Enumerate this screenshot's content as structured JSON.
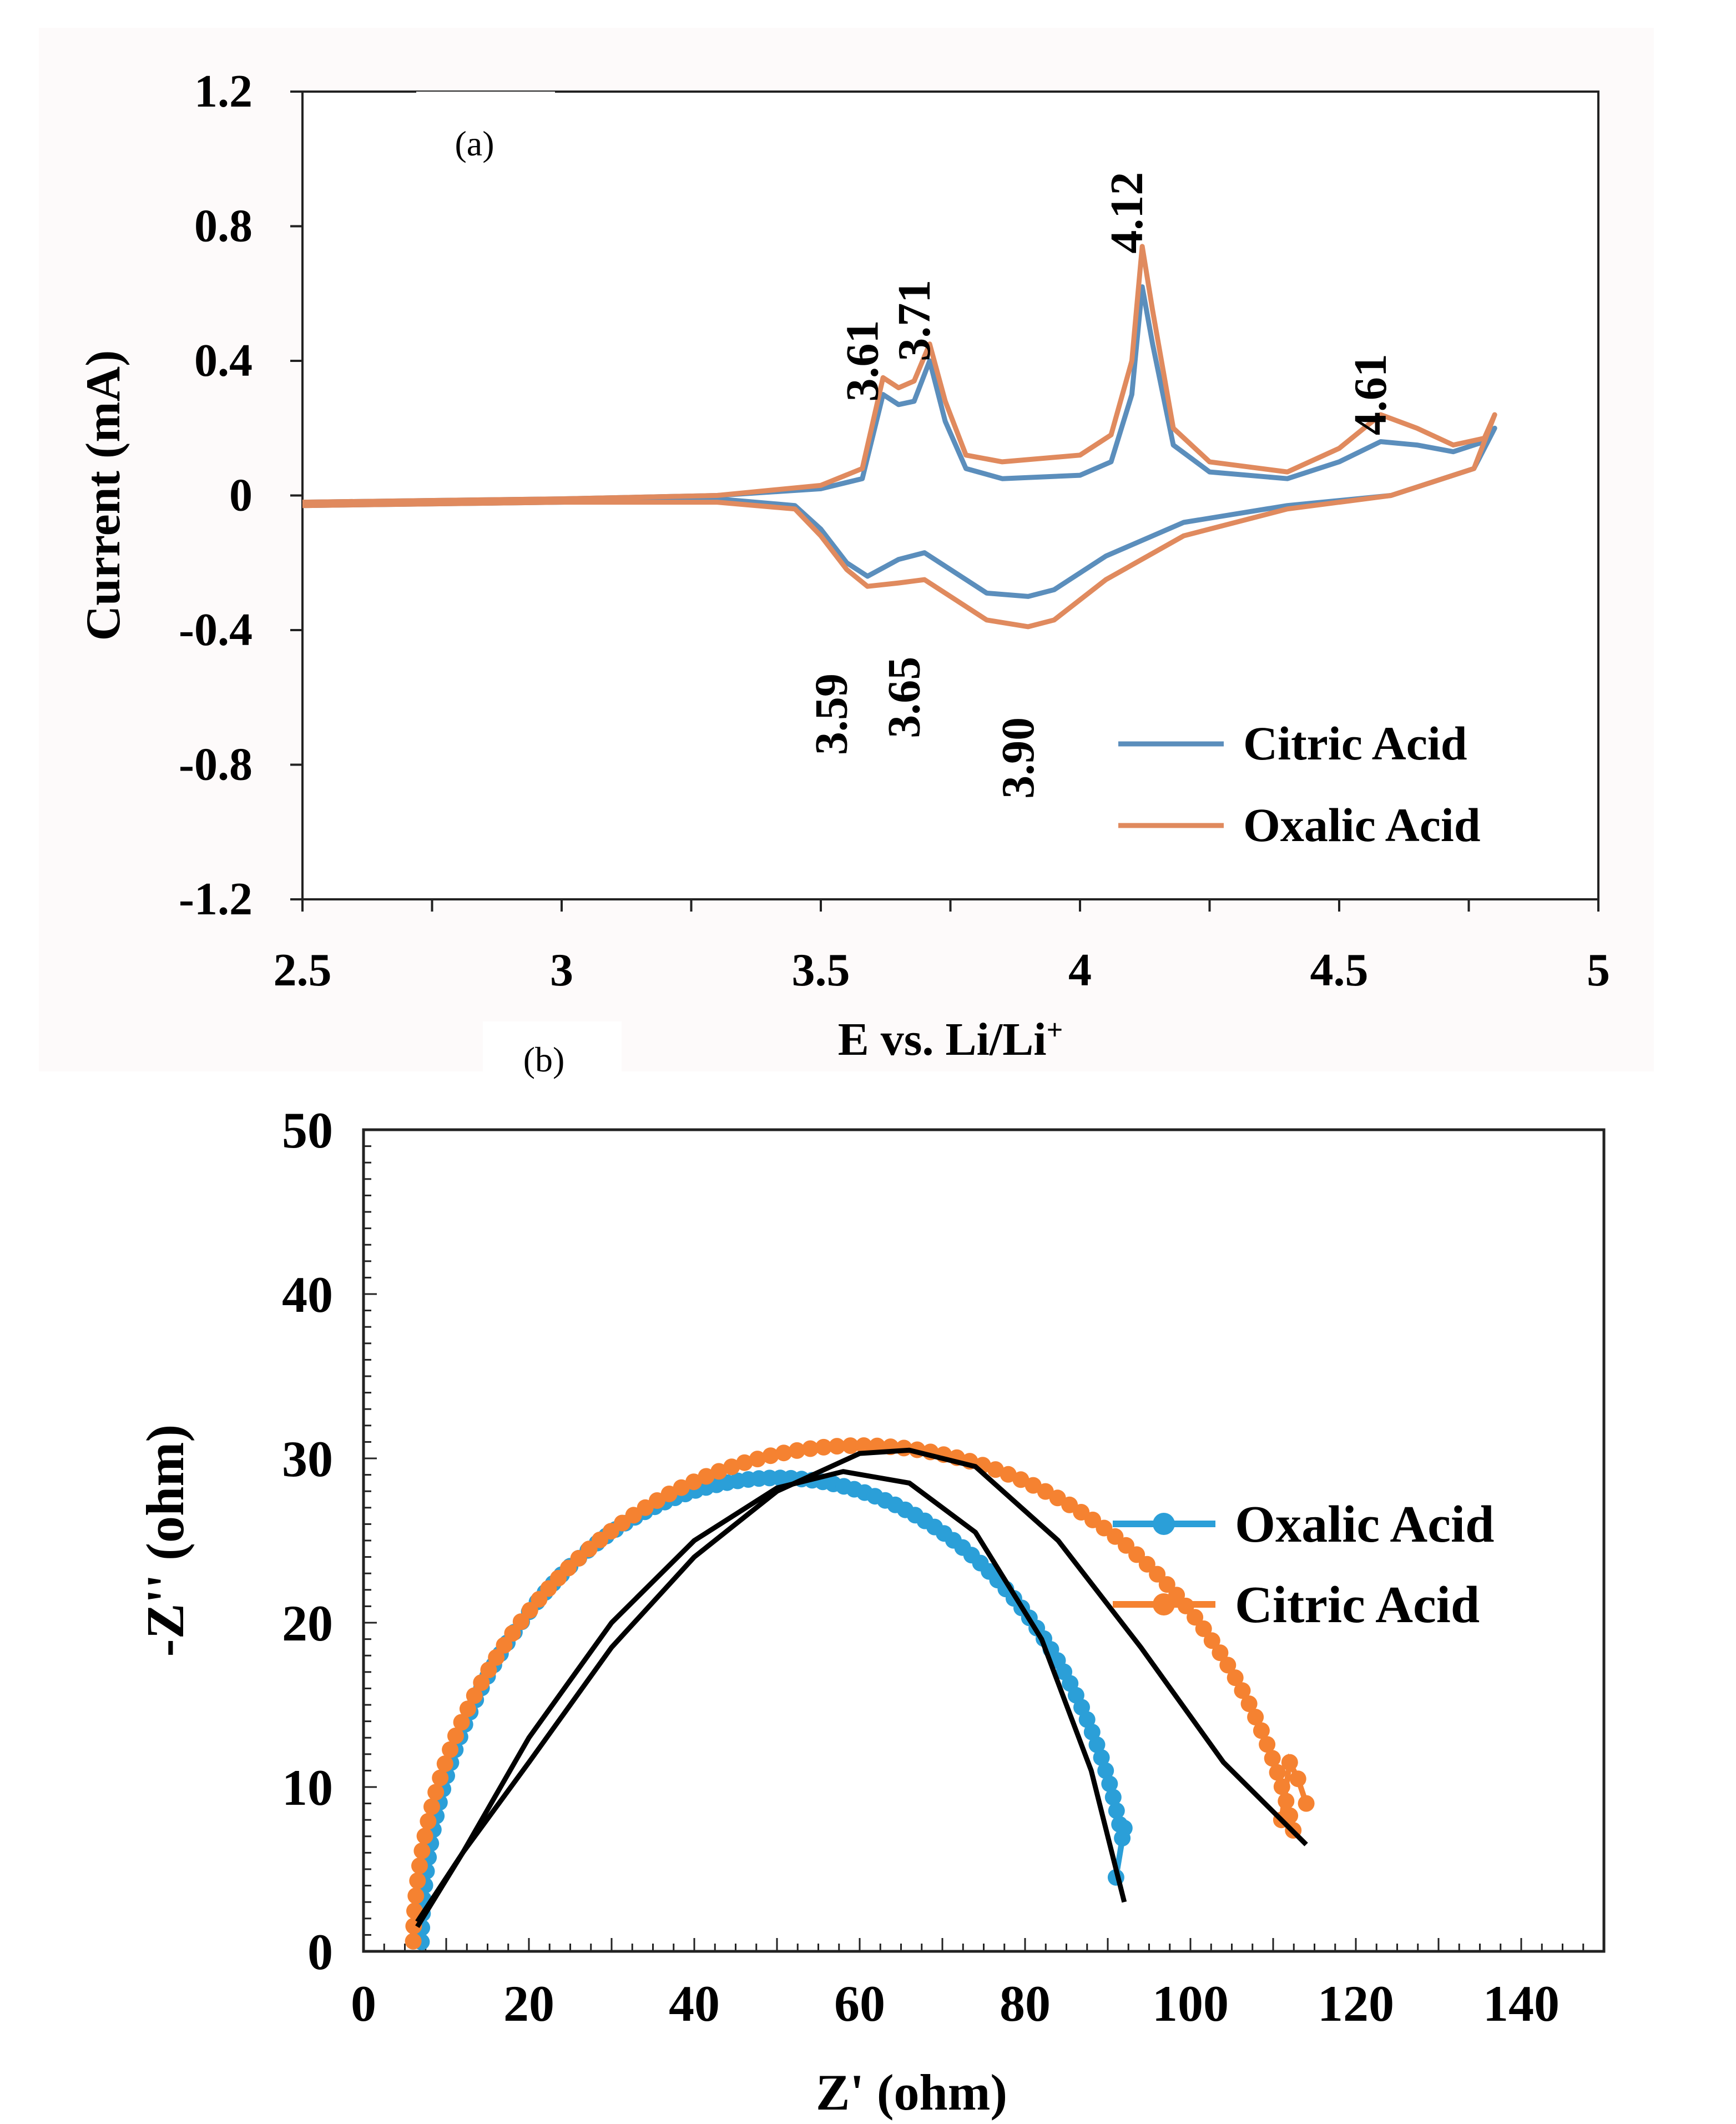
{
  "chart_data": [
    {
      "panel": "(a)",
      "type": "line",
      "xlabel": "E vs. Li/Li",
      "xlabel_sup": "+",
      "ylabel": "Current (mA)",
      "xlim": [
        2.5,
        5
      ],
      "ylim": [
        -1.2,
        1.2
      ],
      "xticks": [
        "2.5",
        "3",
        "3.5",
        "4",
        "4.5",
        "5"
      ],
      "xtick_values": [
        2.5,
        3,
        3.5,
        4,
        4.5,
        5
      ],
      "yticks": [
        "1.2",
        "0.8",
        "0.4",
        "0",
        "-0.4",
        "-0.8",
        "-1.2"
      ],
      "ytick_values": [
        1.2,
        0.8,
        0.4,
        0,
        -0.4,
        -0.8,
        -1.2
      ],
      "legend": [
        "Citric Acid",
        "Oxalic Acid"
      ],
      "series": [
        {
          "name": "Citric Acid",
          "color": "#5b8ebc",
          "anodic": [
            [
              2.5,
              -0.02
            ],
            [
              3.0,
              -0.01
            ],
            [
              3.3,
              0.0
            ],
            [
              3.5,
              0.02
            ],
            [
              3.58,
              0.05
            ],
            [
              3.62,
              0.3
            ],
            [
              3.65,
              0.27
            ],
            [
              3.68,
              0.28
            ],
            [
              3.71,
              0.4
            ],
            [
              3.74,
              0.22
            ],
            [
              3.78,
              0.08
            ],
            [
              3.85,
              0.05
            ],
            [
              4.0,
              0.06
            ],
            [
              4.06,
              0.1
            ],
            [
              4.1,
              0.3
            ],
            [
              4.12,
              0.62
            ],
            [
              4.14,
              0.45
            ],
            [
              4.18,
              0.15
            ],
            [
              4.25,
              0.07
            ],
            [
              4.4,
              0.05
            ],
            [
              4.5,
              0.1
            ],
            [
              4.58,
              0.16
            ],
            [
              4.65,
              0.15
            ],
            [
              4.72,
              0.13
            ],
            [
              4.78,
              0.16
            ],
            [
              4.8,
              0.2
            ]
          ],
          "cathodic": [
            [
              4.8,
              0.2
            ],
            [
              4.76,
              0.08
            ],
            [
              4.6,
              0.0
            ],
            [
              4.4,
              -0.03
            ],
            [
              4.2,
              -0.08
            ],
            [
              4.05,
              -0.18
            ],
            [
              3.95,
              -0.28
            ],
            [
              3.9,
              -0.3
            ],
            [
              3.82,
              -0.29
            ],
            [
              3.75,
              -0.22
            ],
            [
              3.7,
              -0.17
            ],
            [
              3.65,
              -0.19
            ],
            [
              3.59,
              -0.24
            ],
            [
              3.55,
              -0.2
            ],
            [
              3.5,
              -0.1
            ],
            [
              3.45,
              -0.03
            ],
            [
              3.3,
              -0.01
            ],
            [
              3.0,
              -0.02
            ],
            [
              2.5,
              -0.03
            ]
          ]
        },
        {
          "name": "Oxalic Acid",
          "color": "#e08a5e",
          "anodic": [
            [
              2.5,
              -0.02
            ],
            [
              3.0,
              -0.01
            ],
            [
              3.3,
              0.0
            ],
            [
              3.5,
              0.03
            ],
            [
              3.58,
              0.08
            ],
            [
              3.62,
              0.35
            ],
            [
              3.65,
              0.32
            ],
            [
              3.68,
              0.34
            ],
            [
              3.71,
              0.45
            ],
            [
              3.74,
              0.28
            ],
            [
              3.78,
              0.12
            ],
            [
              3.85,
              0.1
            ],
            [
              4.0,
              0.12
            ],
            [
              4.06,
              0.18
            ],
            [
              4.1,
              0.4
            ],
            [
              4.12,
              0.74
            ],
            [
              4.14,
              0.55
            ],
            [
              4.18,
              0.2
            ],
            [
              4.25,
              0.1
            ],
            [
              4.4,
              0.07
            ],
            [
              4.5,
              0.14
            ],
            [
              4.58,
              0.24
            ],
            [
              4.65,
              0.2
            ],
            [
              4.72,
              0.15
            ],
            [
              4.78,
              0.17
            ],
            [
              4.8,
              0.24
            ]
          ],
          "cathodic": [
            [
              4.8,
              0.24
            ],
            [
              4.76,
              0.08
            ],
            [
              4.6,
              0.0
            ],
            [
              4.4,
              -0.04
            ],
            [
              4.2,
              -0.12
            ],
            [
              4.05,
              -0.25
            ],
            [
              3.95,
              -0.37
            ],
            [
              3.9,
              -0.39
            ],
            [
              3.82,
              -0.37
            ],
            [
              3.75,
              -0.3
            ],
            [
              3.7,
              -0.25
            ],
            [
              3.65,
              -0.26
            ],
            [
              3.59,
              -0.27
            ],
            [
              3.55,
              -0.22
            ],
            [
              3.5,
              -0.12
            ],
            [
              3.45,
              -0.04
            ],
            [
              3.3,
              -0.02
            ],
            [
              3.0,
              -0.02
            ],
            [
              2.5,
              -0.03
            ]
          ]
        }
      ],
      "annotations": [
        {
          "text": "3.61",
          "x": 3.61,
          "y": 0.4,
          "rotate": true
        },
        {
          "text": "3.71",
          "x": 3.71,
          "y": 0.52,
          "rotate": true
        },
        {
          "text": "4.12",
          "x": 4.12,
          "y": 0.84,
          "rotate": true
        },
        {
          "text": "4.61",
          "x": 4.59,
          "y": 0.3,
          "rotate": true
        },
        {
          "text": "3.59",
          "x": 3.55,
          "y": -0.65,
          "rotate": true
        },
        {
          "text": "3.65",
          "x": 3.69,
          "y": -0.6,
          "rotate": true
        },
        {
          "text": "3.90",
          "x": 3.91,
          "y": -0.78,
          "rotate": true
        }
      ]
    },
    {
      "panel": "(b)",
      "type": "scatter",
      "xlabel": "Z' (ohm)",
      "ylabel": "-Z'' (ohm)",
      "xlim": [
        0,
        150
      ],
      "ylim": [
        0,
        50
      ],
      "xticks": [
        "0",
        "20",
        "40",
        "60",
        "80",
        "100",
        "120",
        "140"
      ],
      "xtick_values": [
        0,
        20,
        40,
        60,
        80,
        100,
        120,
        140
      ],
      "yticks": [
        "50",
        "40",
        "30",
        "20",
        "10",
        "0"
      ],
      "ytick_values": [
        50,
        40,
        30,
        20,
        10,
        0
      ],
      "legend": [
        "Oxalic Acid",
        "Citric Acid"
      ],
      "series": [
        {
          "name": "Oxalic Acid",
          "color": "#2b9fd8",
          "center": 50,
          "radius": 43,
          "rcut": 10,
          "end": [
            [
              91,
              4.5
            ],
            [
              92,
              7.5
            ]
          ]
        },
        {
          "name": "Citric Acid",
          "color": "#f58231",
          "center": 60,
          "radius": 54,
          "rcut": 12,
          "end": [
            [
              111,
              8
            ],
            [
              112,
              11.5
            ],
            [
              113,
              10.5
            ],
            [
              114,
              9
            ]
          ]
        }
      ],
      "fits": [
        {
          "name": "Oxalic Acid fit",
          "color": "#000000",
          "points": [
            [
              6.5,
              1.5
            ],
            [
              12,
              6
            ],
            [
              20,
              13
            ],
            [
              30,
              20
            ],
            [
              40,
              25
            ],
            [
              50,
              28.2
            ],
            [
              58,
              29.2
            ],
            [
              66,
              28.5
            ],
            [
              74,
              25.5
            ],
            [
              82,
              19
            ],
            [
              88,
              11
            ],
            [
              92,
              3
            ]
          ]
        },
        {
          "name": "Citric Acid fit",
          "color": "#000000",
          "points": [
            [
              6.5,
              1.8
            ],
            [
              12,
              6
            ],
            [
              20,
              11.5
            ],
            [
              30,
              18.5
            ],
            [
              40,
              24
            ],
            [
              50,
              28
            ],
            [
              60,
              30.3
            ],
            [
              66,
              30.5
            ],
            [
              74,
              29.5
            ],
            [
              84,
              25
            ],
            [
              94,
              18.5
            ],
            [
              104,
              11.5
            ],
            [
              114,
              6.5
            ]
          ]
        }
      ]
    }
  ]
}
